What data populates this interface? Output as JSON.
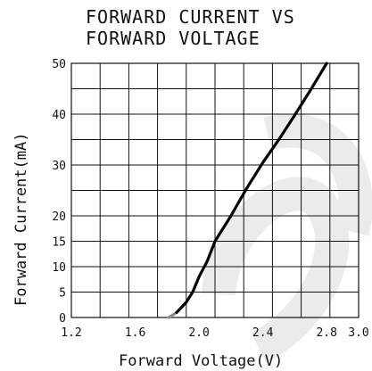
{
  "chart_data": {
    "type": "line",
    "title_lines": [
      "FORWARD CURRENT VS",
      "FORWARD VOLTAGE"
    ],
    "xlabel": "Forward Voltage(V)",
    "ylabel": "Forward Current(mA)",
    "xlim": [
      1.2,
      3.0
    ],
    "ylim": [
      0,
      50
    ],
    "x_ticks": [
      "1.2",
      "1.6",
      "2.0",
      "2.4",
      "2.8",
      "3.0"
    ],
    "x_tick_values": [
      1.2,
      1.6,
      2.0,
      2.4,
      2.8,
      3.0
    ],
    "y_ticks": [
      "0",
      "5",
      "10",
      "15",
      "20",
      "30",
      "40",
      "50"
    ],
    "y_tick_values": [
      0,
      5,
      10,
      15,
      20,
      30,
      40,
      50
    ],
    "grid": true,
    "series": [
      {
        "x": [
          1.81,
          1.86,
          1.92,
          1.96,
          2.0,
          2.05,
          2.1,
          2.2,
          2.3,
          2.4,
          2.5,
          2.6,
          2.7,
          2.8
        ],
        "y": [
          0,
          1,
          3,
          5,
          8,
          11,
          15,
          20,
          25.5,
          30.5,
          35,
          39.8,
          44.8,
          50
        ]
      }
    ]
  }
}
